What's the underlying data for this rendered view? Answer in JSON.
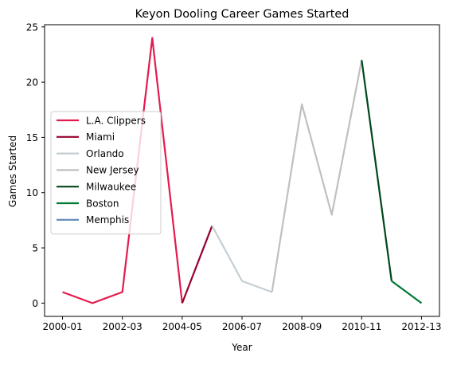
{
  "chart_data": {
    "type": "line",
    "title": "Keyon Dooling Career Games Started",
    "xlabel": "Year",
    "ylabel": "Games Started",
    "x_categories": [
      "2000-01",
      "2001-02",
      "2002-03",
      "2003-04",
      "2004-05",
      "2005-06",
      "2006-07",
      "2007-08",
      "2008-09",
      "2009-10",
      "2010-11",
      "2011-12",
      "2012-13"
    ],
    "x_tick_labels": [
      "2000-01",
      "2002-03",
      "2004-05",
      "2006-07",
      "2008-09",
      "2010-11",
      "2012-13"
    ],
    "y_ticks": [
      0,
      5,
      10,
      15,
      20,
      25
    ],
    "ylim": [
      -1.2,
      25.2
    ],
    "grid": false,
    "legend_position": "center-left",
    "series": [
      {
        "name": "L.A. Clippers",
        "color": "#e31b4e",
        "x": [
          "2000-01",
          "2001-02",
          "2002-03",
          "2003-04",
          "2004-05"
        ],
        "y": [
          1,
          0,
          1,
          24,
          0
        ]
      },
      {
        "name": "Miami",
        "color": "#98002e",
        "x": [
          "2004-05",
          "2005-06"
        ],
        "y": [
          0,
          7
        ]
      },
      {
        "name": "Orlando",
        "color": "#c4ced4",
        "x": [
          "2005-06",
          "2006-07",
          "2007-08"
        ],
        "y": [
          7,
          2,
          1
        ]
      },
      {
        "name": "New Jersey",
        "color": "#c0c0c0",
        "x": [
          "2007-08",
          "2008-09",
          "2009-10",
          "2010-11"
        ],
        "y": [
          1,
          18,
          8,
          22
        ]
      },
      {
        "name": "Milwaukee",
        "color": "#00471b",
        "x": [
          "2010-11",
          "2011-12"
        ],
        "y": [
          22,
          2
        ]
      },
      {
        "name": "Boston",
        "color": "#007a33",
        "x": [
          "2011-12",
          "2012-13"
        ],
        "y": [
          2,
          0
        ]
      },
      {
        "name": "Memphis",
        "color": "#6189b9",
        "x": [],
        "y": []
      }
    ]
  }
}
